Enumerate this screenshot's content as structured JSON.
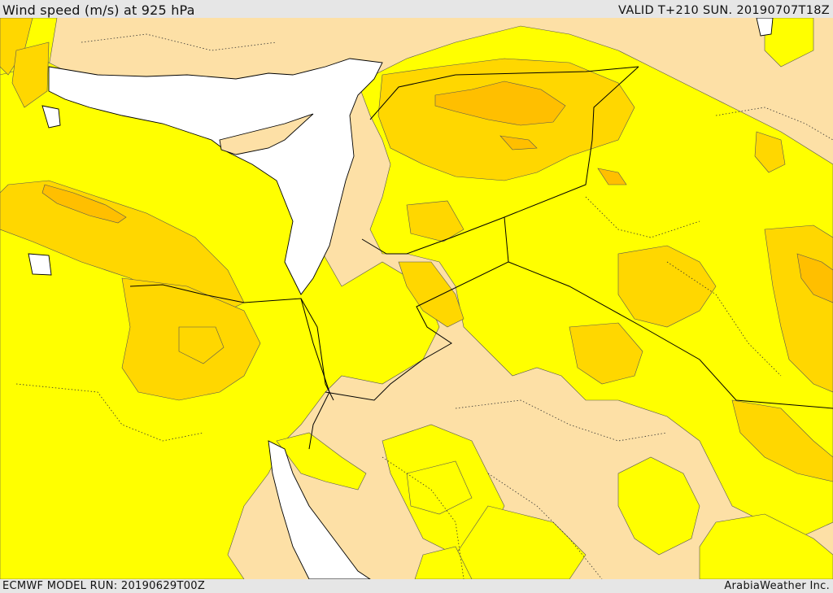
{
  "header": {
    "title": "Wind speed (m/s) at 925 hPa",
    "valid": "VALID T+210 SUN. 20190707T18Z"
  },
  "footer": {
    "run": "ECMWF MODEL RUN: 20190629T00Z",
    "credit": "ArabiaWeather Inc."
  },
  "map": {
    "palette": {
      "sea": "#ffffff",
      "calm": "#fde0a6",
      "light": "#ffff00",
      "moderate": "#ffd700",
      "strong": "#ffbf00",
      "coast_line": "#000000",
      "border_line": "#000000"
    }
  }
}
